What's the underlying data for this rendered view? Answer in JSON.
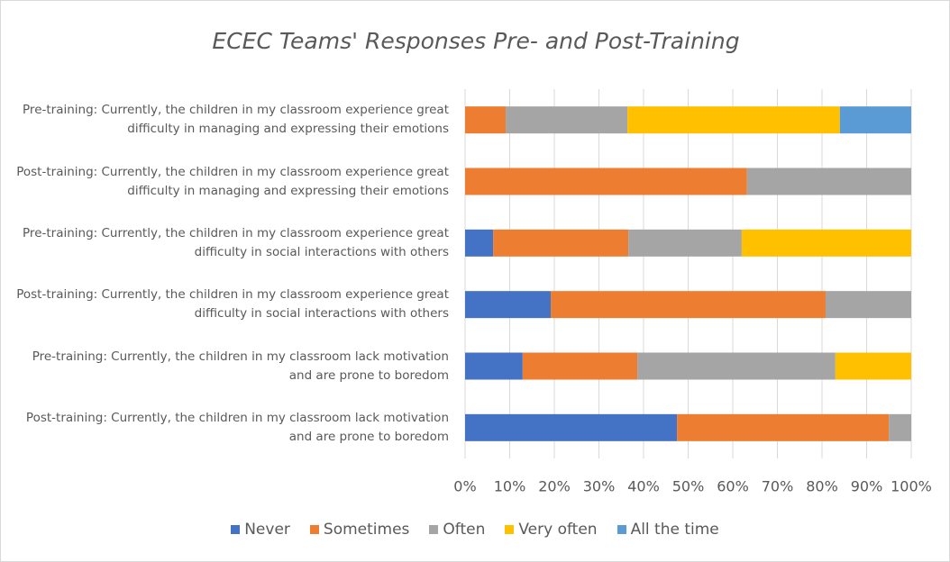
{
  "chart_data": {
    "type": "bar",
    "orientation": "horizontal",
    "stacked": true,
    "title": "ECEC Teams' Responses Pre- and Post-Training",
    "categories": [
      "Pre-training: Currently, the children in my classroom experience great difficulty in managing and expressing their emotions",
      "Post-training: Currently, the children in my classroom experience great difficulty in managing and expressing their emotions",
      "Pre-training: Currently, the children in my classroom experience great difficulty in social interactions with others",
      "Post-training: Currently, the children in my classroom experience great difficulty in social interactions with others",
      "Pre-training: Currently, the children in my classroom lack motivation and are prone to boredom",
      "Post-training: Currently, the children in my classroom lack motivation and are prone to boredom"
    ],
    "series": [
      {
        "name": "Never",
        "color": "#4472c4",
        "values": [
          0,
          0,
          6.3,
          19.2,
          12.9,
          47.5
        ]
      },
      {
        "name": "Sometimes",
        "color": "#ed7d31",
        "values": [
          9.1,
          63.2,
          30.3,
          61.6,
          25.7,
          47.5
        ]
      },
      {
        "name": "Often",
        "color": "#a5a5a5",
        "values": [
          27.3,
          36.8,
          25.4,
          19.2,
          44.4,
          5
        ]
      },
      {
        "name": "Very often",
        "color": "#ffc000",
        "values": [
          47.6,
          0,
          38,
          0,
          17,
          0
        ]
      },
      {
        "name": "All the time",
        "color": "#5b9bd5",
        "values": [
          16,
          0,
          0,
          0,
          0,
          0
        ]
      }
    ],
    "xlim": [
      0,
      100
    ],
    "xticks": [
      {
        "value": 0,
        "label": "0%"
      },
      {
        "value": 10,
        "label": "10%"
      },
      {
        "value": 20,
        "label": "20%"
      },
      {
        "value": 30,
        "label": "30%"
      },
      {
        "value": 40,
        "label": "40%"
      },
      {
        "value": 50,
        "label": "50%"
      },
      {
        "value": 60,
        "label": "60%"
      },
      {
        "value": 70,
        "label": "70%"
      },
      {
        "value": 80,
        "label": "80%"
      },
      {
        "value": 90,
        "label": "90%"
      },
      {
        "value": 100,
        "label": "100%"
      }
    ],
    "grid": true,
    "legend": "bottom"
  }
}
